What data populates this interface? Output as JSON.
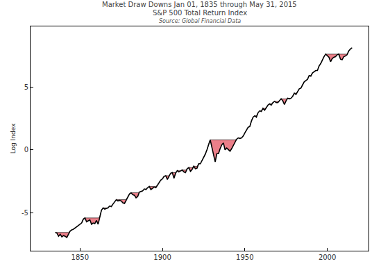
{
  "chart_data": {
    "type": "line",
    "title": "Market Draw Downs Jan 01, 1835 through May 31, 2015",
    "subtitle": "S&P 500 Total Return Index",
    "source": "Source: Global Financial Data",
    "y_label": "Log Index",
    "color": "#000000",
    "grid": false,
    "xlim": [
      1820,
      2025
    ],
    "xticks": [
      1850,
      1900,
      1950,
      2000
    ],
    "ylim": [
      -8,
      9.8
    ],
    "yticks": [
      -5,
      0,
      5
    ],
    "x": [
      1835,
      1836,
      1837,
      1838,
      1839,
      1840,
      1841,
      1842,
      1843,
      1844,
      1845,
      1846,
      1847,
      1848,
      1849,
      1850,
      1851,
      1852,
      1853,
      1854,
      1855,
      1856,
      1857,
      1858,
      1859,
      1860,
      1861,
      1862,
      1863,
      1864,
      1865,
      1866,
      1867,
      1868,
      1869,
      1870,
      1871,
      1872,
      1873,
      1874,
      1875,
      1876,
      1877,
      1878,
      1879,
      1880,
      1881,
      1882,
      1883,
      1884,
      1885,
      1886,
      1887,
      1888,
      1889,
      1890,
      1891,
      1892,
      1893,
      1894,
      1895,
      1896,
      1897,
      1898,
      1899,
      1900,
      1901,
      1902,
      1903,
      1904,
      1905,
      1906,
      1907,
      1908,
      1909,
      1910,
      1911,
      1912,
      1913,
      1914,
      1915,
      1916,
      1917,
      1918,
      1919,
      1920,
      1921,
      1922,
      1923,
      1924,
      1925,
      1926,
      1927,
      1928,
      1929,
      1930,
      1931,
      1932,
      1933,
      1934,
      1935,
      1936,
      1937,
      1938,
      1939,
      1940,
      1941,
      1942,
      1943,
      1944,
      1945,
      1946,
      1947,
      1948,
      1949,
      1950,
      1951,
      1952,
      1953,
      1954,
      1955,
      1956,
      1957,
      1958,
      1959,
      1960,
      1961,
      1962,
      1963,
      1964,
      1965,
      1966,
      1967,
      1968,
      1969,
      1970,
      1971,
      1972,
      1973,
      1974,
      1975,
      1976,
      1977,
      1978,
      1979,
      1980,
      1981,
      1982,
      1983,
      1984,
      1985,
      1986,
      1987,
      1988,
      1989,
      1990,
      1991,
      1992,
      1993,
      1994,
      1995,
      1996,
      1997,
      1998,
      1999,
      2000,
      2001,
      2002,
      2003,
      2004,
      2005,
      2006,
      2007,
      2008,
      2009,
      2010,
      2011,
      2012,
      2013,
      2014,
      2015
    ],
    "values": [
      -6.55,
      -6.6,
      -6.85,
      -6.7,
      -6.9,
      -6.8,
      -6.85,
      -6.95,
      -6.7,
      -6.45,
      -6.35,
      -6.3,
      -6.2,
      -6.1,
      -6.0,
      -5.9,
      -5.8,
      -5.5,
      -5.4,
      -5.7,
      -5.6,
      -5.55,
      -5.9,
      -5.8,
      -5.85,
      -5.6,
      -5.9,
      -5.3,
      -4.8,
      -4.6,
      -4.7,
      -4.65,
      -4.6,
      -4.45,
      -4.5,
      -4.3,
      -4.1,
      -3.95,
      -4.05,
      -4.0,
      -4.05,
      -4.2,
      -4.25,
      -4.0,
      -3.7,
      -3.5,
      -3.4,
      -3.55,
      -3.6,
      -3.8,
      -3.7,
      -3.35,
      -3.3,
      -3.25,
      -3.1,
      -3.15,
      -3.0,
      -2.9,
      -3.15,
      -3.05,
      -2.95,
      -3.0,
      -2.8,
      -2.6,
      -2.4,
      -2.3,
      -2.1,
      -2.05,
      -2.35,
      -2.1,
      -1.85,
      -1.8,
      -2.25,
      -1.85,
      -1.65,
      -1.75,
      -1.65,
      -1.6,
      -1.75,
      -1.8,
      -1.5,
      -1.4,
      -1.7,
      -1.55,
      -1.3,
      -1.5,
      -1.45,
      -1.1,
      -1.1,
      -0.85,
      -0.55,
      -0.35,
      0.0,
      0.45,
      0.8,
      0.2,
      -0.4,
      -0.95,
      -0.3,
      -0.3,
      0.1,
      0.4,
      0.55,
      0.0,
      0.15,
      0.0,
      -0.1,
      0.1,
      0.35,
      0.55,
      0.85,
      0.95,
      0.9,
      0.95,
      1.1,
      1.35,
      1.6,
      1.8,
      1.85,
      2.3,
      2.6,
      2.7,
      2.6,
      2.95,
      3.1,
      3.05,
      3.3,
      3.15,
      3.35,
      3.55,
      3.65,
      3.55,
      3.75,
      3.85,
      3.75,
      3.75,
      3.9,
      4.05,
      3.9,
      3.6,
      3.9,
      4.1,
      4.05,
      4.1,
      4.25,
      4.5,
      4.4,
      4.6,
      4.85,
      4.9,
      5.2,
      5.4,
      5.5,
      5.6,
      5.9,
      5.85,
      6.1,
      6.2,
      6.3,
      6.3,
      6.65,
      6.85,
      7.15,
      7.4,
      7.6,
      7.5,
      7.35,
      7.0,
      7.25,
      7.35,
      7.4,
      7.55,
      7.6,
      7.2,
      7.15,
      7.4,
      7.45,
      7.55,
      7.85,
      8.0,
      8.1
    ]
  }
}
